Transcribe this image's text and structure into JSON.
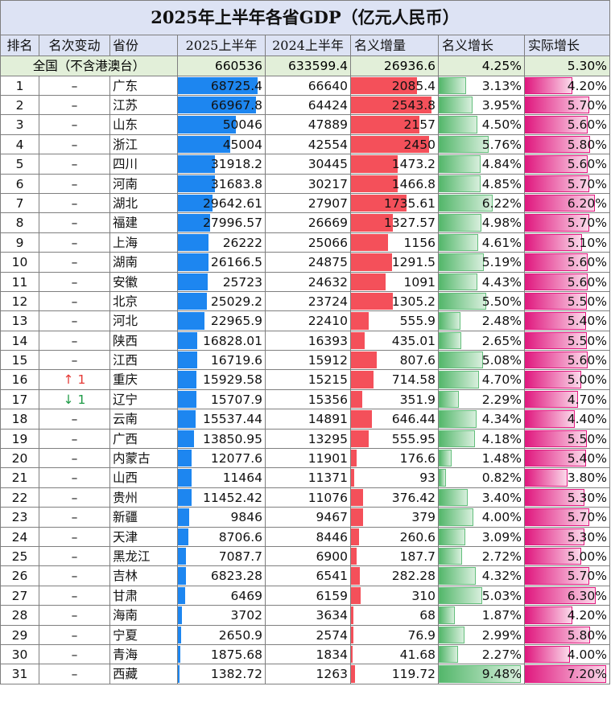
{
  "title": "2025年上半年各省GDP（亿元人民币）",
  "headers": {
    "rank": "排名",
    "change": "名次变动",
    "province": "省份",
    "gdp_2025": "2025上半年",
    "gdp_2024": "2024上半年",
    "nominal_increase": "名义增量",
    "nominal_growth": "名义增长",
    "real_growth": "实际增长"
  },
  "national": {
    "label": "全国（不含港澳台）",
    "gdp_2025": "660536",
    "gdp_2024": "633599.4",
    "nominal_increase": "26936.6",
    "nominal_growth": "4.25%",
    "real_growth": "5.30%"
  },
  "colors": {
    "header_bg": "#dde3f4",
    "national_bg": "#e2efd9",
    "gdp_bar": "#1d86f0",
    "increase_bar": "#f4505a",
    "nominal_growth_bar": "#63be7b",
    "real_growth_bar": "#e0197f",
    "up_arrow": "#e53935",
    "down_arrow": "#1e9b46"
  },
  "rows": [
    {
      "rank": "1",
      "change": "–",
      "province": "广东",
      "gdp_2025": "68725.4",
      "gdp_2024": "66640",
      "nominal_increase": "2085.4",
      "nominal_growth": "3.13%",
      "real_growth": "4.20%"
    },
    {
      "rank": "2",
      "change": "–",
      "province": "江苏",
      "gdp_2025": "66967.8",
      "gdp_2024": "64424",
      "nominal_increase": "2543.8",
      "nominal_growth": "3.95%",
      "real_growth": "5.70%"
    },
    {
      "rank": "3",
      "change": "–",
      "province": "山东",
      "gdp_2025": "50046",
      "gdp_2024": "47889",
      "nominal_increase": "2157",
      "nominal_growth": "4.50%",
      "real_growth": "5.60%"
    },
    {
      "rank": "4",
      "change": "–",
      "province": "浙江",
      "gdp_2025": "45004",
      "gdp_2024": "42554",
      "nominal_increase": "2450",
      "nominal_growth": "5.76%",
      "real_growth": "5.80%"
    },
    {
      "rank": "5",
      "change": "–",
      "province": "四川",
      "gdp_2025": "31918.2",
      "gdp_2024": "30445",
      "nominal_increase": "1473.2",
      "nominal_growth": "4.84%",
      "real_growth": "5.60%"
    },
    {
      "rank": "6",
      "change": "–",
      "province": "河南",
      "gdp_2025": "31683.8",
      "gdp_2024": "30217",
      "nominal_increase": "1466.8",
      "nominal_growth": "4.85%",
      "real_growth": "5.70%"
    },
    {
      "rank": "7",
      "change": "–",
      "province": "湖北",
      "gdp_2025": "29642.61",
      "gdp_2024": "27907",
      "nominal_increase": "1735.61",
      "nominal_growth": "6.22%",
      "real_growth": "6.20%"
    },
    {
      "rank": "8",
      "change": "–",
      "province": "福建",
      "gdp_2025": "27996.57",
      "gdp_2024": "26669",
      "nominal_increase": "1327.57",
      "nominal_growth": "4.98%",
      "real_growth": "5.70%"
    },
    {
      "rank": "9",
      "change": "–",
      "province": "上海",
      "gdp_2025": "26222",
      "gdp_2024": "25066",
      "nominal_increase": "1156",
      "nominal_growth": "4.61%",
      "real_growth": "5.10%"
    },
    {
      "rank": "10",
      "change": "–",
      "province": "湖南",
      "gdp_2025": "26166.5",
      "gdp_2024": "24875",
      "nominal_increase": "1291.5",
      "nominal_growth": "5.19%",
      "real_growth": "5.60%"
    },
    {
      "rank": "11",
      "change": "–",
      "province": "安徽",
      "gdp_2025": "25723",
      "gdp_2024": "24632",
      "nominal_increase": "1091",
      "nominal_growth": "4.43%",
      "real_growth": "5.60%"
    },
    {
      "rank": "12",
      "change": "–",
      "province": "北京",
      "gdp_2025": "25029.2",
      "gdp_2024": "23724",
      "nominal_increase": "1305.2",
      "nominal_growth": "5.50%",
      "real_growth": "5.50%"
    },
    {
      "rank": "13",
      "change": "–",
      "province": "河北",
      "gdp_2025": "22965.9",
      "gdp_2024": "22410",
      "nominal_increase": "555.9",
      "nominal_growth": "2.48%",
      "real_growth": "5.40%"
    },
    {
      "rank": "14",
      "change": "–",
      "province": "陕西",
      "gdp_2025": "16828.01",
      "gdp_2024": "16393",
      "nominal_increase": "435.01",
      "nominal_growth": "2.65%",
      "real_growth": "5.50%"
    },
    {
      "rank": "15",
      "change": "–",
      "province": "江西",
      "gdp_2025": "16719.6",
      "gdp_2024": "15912",
      "nominal_increase": "807.6",
      "nominal_growth": "5.08%",
      "real_growth": "5.60%"
    },
    {
      "rank": "16",
      "change": "↑ 1",
      "change_dir": "up",
      "province": "重庆",
      "gdp_2025": "15929.58",
      "gdp_2024": "15215",
      "nominal_increase": "714.58",
      "nominal_growth": "4.70%",
      "real_growth": "5.00%"
    },
    {
      "rank": "17",
      "change": "↓ 1",
      "change_dir": "down",
      "province": "辽宁",
      "gdp_2025": "15707.9",
      "gdp_2024": "15356",
      "nominal_increase": "351.9",
      "nominal_growth": "2.29%",
      "real_growth": "4.70%"
    },
    {
      "rank": "18",
      "change": "–",
      "province": "云南",
      "gdp_2025": "15537.44",
      "gdp_2024": "14891",
      "nominal_increase": "646.44",
      "nominal_growth": "4.34%",
      "real_growth": "4.40%"
    },
    {
      "rank": "19",
      "change": "–",
      "province": "广西",
      "gdp_2025": "13850.95",
      "gdp_2024": "13295",
      "nominal_increase": "555.95",
      "nominal_growth": "4.18%",
      "real_growth": "5.50%"
    },
    {
      "rank": "20",
      "change": "–",
      "province": "内蒙古",
      "gdp_2025": "12077.6",
      "gdp_2024": "11901",
      "nominal_increase": "176.6",
      "nominal_growth": "1.48%",
      "real_growth": "5.40%"
    },
    {
      "rank": "21",
      "change": "–",
      "province": "山西",
      "gdp_2025": "11464",
      "gdp_2024": "11371",
      "nominal_increase": "93",
      "nominal_growth": "0.82%",
      "real_growth": "3.80%"
    },
    {
      "rank": "22",
      "change": "–",
      "province": "贵州",
      "gdp_2025": "11452.42",
      "gdp_2024": "11076",
      "nominal_increase": "376.42",
      "nominal_growth": "3.40%",
      "real_growth": "5.30%"
    },
    {
      "rank": "23",
      "change": "–",
      "province": "新疆",
      "gdp_2025": "9846",
      "gdp_2024": "9467",
      "nominal_increase": "379",
      "nominal_growth": "4.00%",
      "real_growth": "5.70%"
    },
    {
      "rank": "24",
      "change": "–",
      "province": "天津",
      "gdp_2025": "8706.6",
      "gdp_2024": "8446",
      "nominal_increase": "260.6",
      "nominal_growth": "3.09%",
      "real_growth": "5.30%"
    },
    {
      "rank": "25",
      "change": "–",
      "province": "黑龙江",
      "gdp_2025": "7087.7",
      "gdp_2024": "6900",
      "nominal_increase": "187.7",
      "nominal_growth": "2.72%",
      "real_growth": "5.00%"
    },
    {
      "rank": "26",
      "change": "–",
      "province": "吉林",
      "gdp_2025": "6823.28",
      "gdp_2024": "6541",
      "nominal_increase": "282.28",
      "nominal_growth": "4.32%",
      "real_growth": "5.70%"
    },
    {
      "rank": "27",
      "change": "–",
      "province": "甘肃",
      "gdp_2025": "6469",
      "gdp_2024": "6159",
      "nominal_increase": "310",
      "nominal_growth": "5.03%",
      "real_growth": "6.30%"
    },
    {
      "rank": "28",
      "change": "–",
      "province": "海南",
      "gdp_2025": "3702",
      "gdp_2024": "3634",
      "nominal_increase": "68",
      "nominal_growth": "1.87%",
      "real_growth": "4.20%"
    },
    {
      "rank": "29",
      "change": "–",
      "province": "宁夏",
      "gdp_2025": "2650.9",
      "gdp_2024": "2574",
      "nominal_increase": "76.9",
      "nominal_growth": "2.99%",
      "real_growth": "5.80%"
    },
    {
      "rank": "30",
      "change": "–",
      "province": "青海",
      "gdp_2025": "1875.68",
      "gdp_2024": "1834",
      "nominal_increase": "41.68",
      "nominal_growth": "2.27%",
      "real_growth": "4.00%"
    },
    {
      "rank": "31",
      "change": "–",
      "province": "西藏",
      "gdp_2025": "1382.72",
      "gdp_2024": "1263",
      "nominal_increase": "119.72",
      "nominal_growth": "9.48%",
      "real_growth": "7.20%"
    }
  ]
}
